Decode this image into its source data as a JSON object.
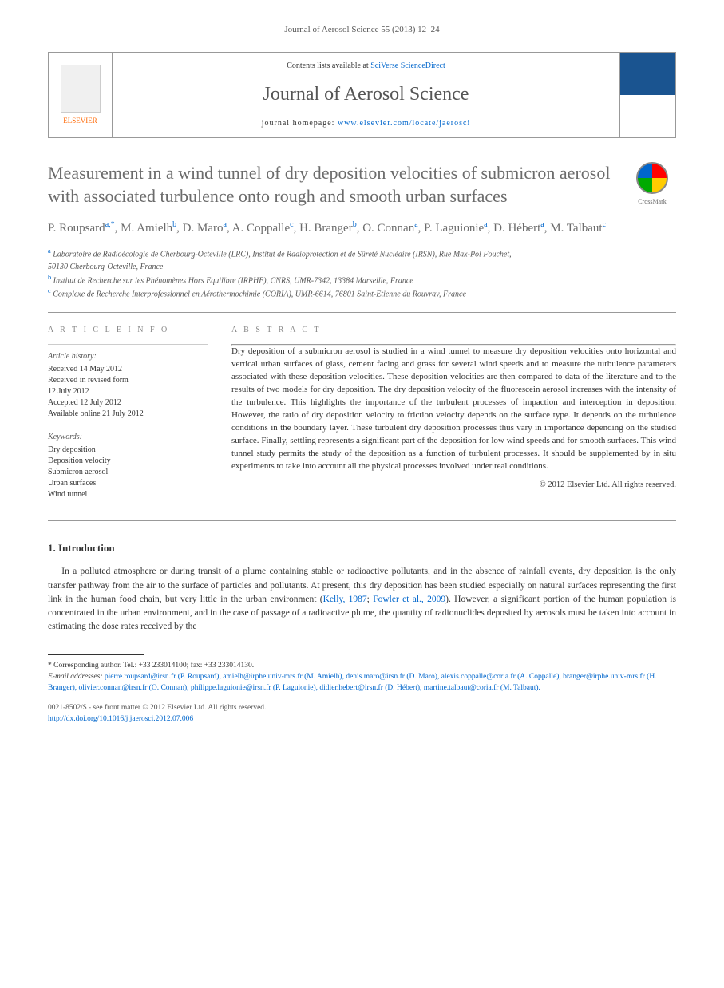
{
  "journal_reference": "Journal of Aerosol Science 55 (2013) 12–24",
  "header": {
    "contents_prefix": "Contents lists available at ",
    "contents_link": "SciVerse ScienceDirect",
    "journal_name": "Journal of Aerosol Science",
    "homepage_prefix": "journal homepage: ",
    "homepage_link": "www.elsevier.com/locate/jaerosci",
    "publisher": "ELSEVIER"
  },
  "crossmark_label": "CrossMark",
  "title": "Measurement in a wind tunnel of dry deposition velocities of submicron aerosol with associated turbulence onto rough and smooth urban surfaces",
  "authors_html": "P. Roupsard<sup>a,*</sup>, M. Amielh<sup>b</sup>, D. Maro<sup>a</sup>, A. Coppalle<sup>c</sup>, H. Branger<sup>b</sup>, O. Connan<sup>a</sup>, P. Laguionie<sup>a</sup>, D. Hébert<sup>a</sup>, M. Talbaut<sup>c</sup>",
  "affiliations": {
    "a": "Laboratoire de Radioécologie de Cherbourg-Octeville (LRC), Institut de Radioprotection et de Sûreté Nucléaire (IRSN), Rue Max-Pol Fouchet,",
    "a2": "50130 Cherbourg-Octeville, France",
    "b": "Institut de Recherche sur les Phénomènes Hors Equilibre (IRPHE), CNRS, UMR-7342, 13384 Marseille, France",
    "c": "Complexe de Recherche Interprofessionnel en Aérothermochimie (CORIA), UMR-6614, 76801 Saint-Etienne du Rouvray, France"
  },
  "article_info": {
    "heading": "A R T I C L E  I N F O",
    "history_label": "Article history:",
    "history": [
      "Received 14 May 2012",
      "Received in revised form",
      "12 July 2012",
      "Accepted 12 July 2012",
      "Available online 21 July 2012"
    ],
    "keywords_label": "Keywords:",
    "keywords": [
      "Dry deposition",
      "Deposition velocity",
      "Submicron aerosol",
      "Urban surfaces",
      "Wind tunnel"
    ]
  },
  "abstract": {
    "heading": "A B S T R A C T",
    "text": "Dry deposition of a submicron aerosol is studied in a wind tunnel to measure dry deposition velocities onto horizontal and vertical urban surfaces of glass, cement facing and grass for several wind speeds and to measure the turbulence parameters associated with these deposition velocities. These deposition velocities are then compared to data of the literature and to the results of two models for dry deposition. The dry deposition velocity of the fluorescein aerosol increases with the intensity of the turbulence. This highlights the importance of the turbulent processes of impaction and interception in deposition. However, the ratio of dry deposition velocity to friction velocity depends on the surface type. It depends on the turbulence conditions in the boundary layer. These turbulent dry deposition processes thus vary in importance depending on the studied surface. Finally, settling represents a significant part of the deposition for low wind speeds and for smooth surfaces. This wind tunnel study permits the study of the deposition as a function of turbulent processes. It should be supplemented by in situ experiments to take into account all the physical processes involved under real conditions.",
    "copyright": "© 2012 Elsevier Ltd. All rights reserved."
  },
  "section1": {
    "heading": "1. Introduction",
    "para1_a": "In a polluted atmosphere or during transit of a plume containing stable or radioactive pollutants, and in the absence of rainfall events, dry deposition is the only transfer pathway from the air to the surface of particles and pollutants. At present, this dry deposition has been studied especially on natural surfaces representing the first link in the human food chain, but very little in the urban environment (",
    "cite1": "Kelly, 1987",
    "sep1": "; ",
    "cite2": "Fowler et al., 2009",
    "para1_b": "). However, a significant portion of the human population is concentrated in the urban environment, and in the case of passage of a radioactive plume, the quantity of radionuclides deposited by aerosols must be taken into account in estimating the dose rates received by the"
  },
  "footnotes": {
    "corresponding": "* Corresponding author. Tel.: +33 233014100; fax: +33 233014130.",
    "emails_label": "E-mail addresses: ",
    "emails": "pierre.roupsard@irsn.fr (P. Roupsard), amielh@irphe.univ-mrs.fr (M. Amielh), denis.maro@irsn.fr (D. Maro), alexis.coppalle@coria.fr (A. Coppalle), branger@irphe.univ-mrs.fr (H. Branger), olivier.connan@irsn.fr (O. Connan), philippe.laguionie@irsn.fr (P. Laguionie), didier.hebert@irsn.fr (D. Hébert), martine.talbaut@coria.fr (M. Talbaut)."
  },
  "bottom": {
    "issn": "0021-8502/$ - see front matter © 2012 Elsevier Ltd. All rights reserved.",
    "doi_prefix": "http://dx.doi.org/",
    "doi": "10.1016/j.jaerosci.2012.07.006"
  },
  "colors": {
    "link": "#0066cc",
    "title_gray": "#6b6b6b",
    "text": "#333333",
    "elsevier_orange": "#ff6600"
  }
}
